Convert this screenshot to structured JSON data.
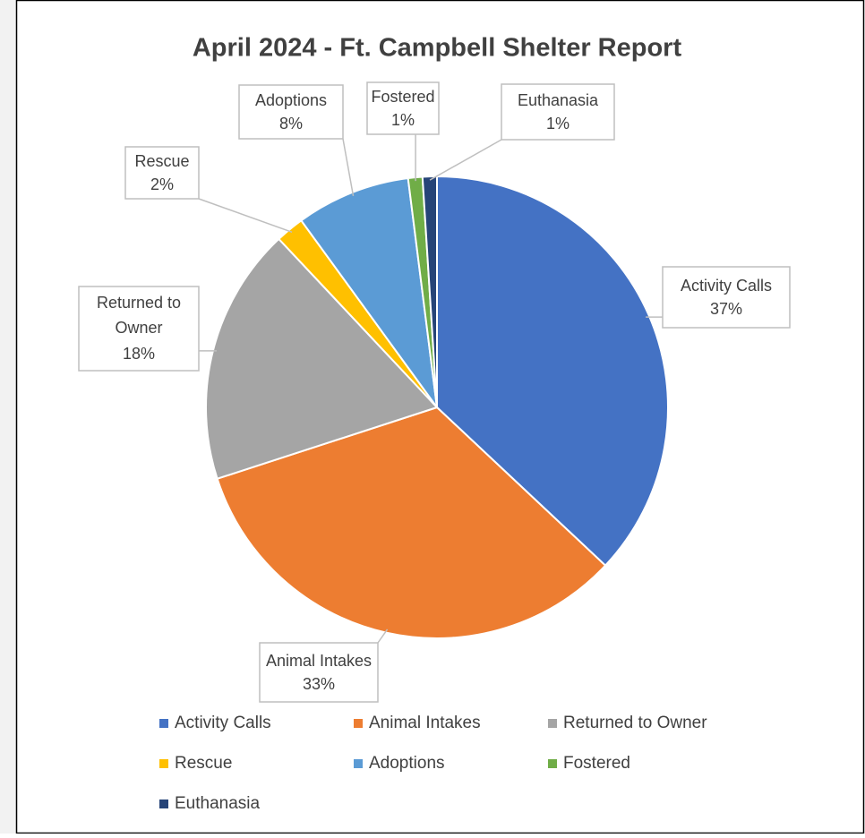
{
  "chart_data": {
    "type": "pie",
    "title": "April 2024 - Ft. Campbell Shelter Report",
    "categories": [
      "Activity Calls",
      "Animal Intakes",
      "Returned to Owner",
      "Rescue",
      "Adoptions",
      "Fostered",
      "Euthanasia"
    ],
    "values": [
      37,
      33,
      18,
      2,
      8,
      1,
      1
    ],
    "value_labels": [
      "37%",
      "33%",
      "18%",
      "2%",
      "8%",
      "1%",
      "1%"
    ],
    "colors": [
      "#4472c4",
      "#ed7d31",
      "#a5a5a5",
      "#ffc000",
      "#5b9bd5",
      "#70ad47",
      "#264478"
    ],
    "legend": "bottom"
  }
}
